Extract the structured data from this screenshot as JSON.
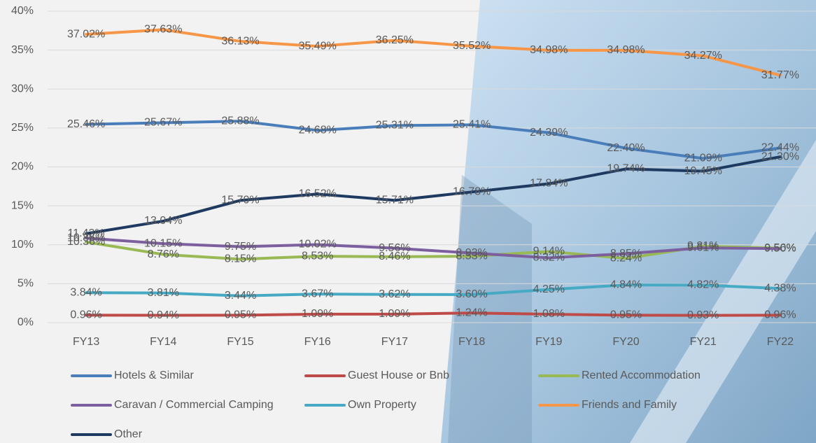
{
  "chart_data": {
    "type": "line",
    "categories": [
      "FY13",
      "FY14",
      "FY15",
      "FY16",
      "FY17",
      "FY18",
      "FY19",
      "FY20",
      "FY21",
      "FY22"
    ],
    "ylim": [
      0,
      40
    ],
    "yticks": [
      {
        "value": 0,
        "label": "0%"
      },
      {
        "value": 5,
        "label": "5%"
      },
      {
        "value": 10,
        "label": "10%"
      },
      {
        "value": 15,
        "label": "15%"
      },
      {
        "value": 20,
        "label": "20%"
      },
      {
        "value": 25,
        "label": "25%"
      },
      {
        "value": 30,
        "label": "30%"
      },
      {
        "value": 35,
        "label": "35%"
      },
      {
        "value": 40,
        "label": "40%"
      }
    ],
    "grid": true,
    "legend": "bottom",
    "series": [
      {
        "name": "Hotels & Similar",
        "color": "#4a7ebb",
        "values": [
          25.46,
          25.67,
          25.88,
          24.68,
          25.31,
          25.41,
          24.39,
          22.4,
          21.09,
          22.44
        ],
        "value_labels": [
          "25.46%",
          "25.67%",
          "25.88%",
          "24.68%",
          "25.31%",
          "25.41%",
          "24.39%",
          "22.40%",
          "21.09%",
          "22.44%"
        ]
      },
      {
        "name": "Guest House or Bnb",
        "color": "#be4b48",
        "values": [
          0.96,
          0.94,
          0.95,
          1.09,
          1.09,
          1.24,
          1.08,
          0.95,
          0.93,
          0.96
        ],
        "value_labels": [
          "0.96%",
          "0.94%",
          "0.95%",
          "1.09%",
          "1.09%",
          "1.24%",
          "1.08%",
          "0.95%",
          "0.93%",
          "0.96%"
        ]
      },
      {
        "name": "Rented Accommodation",
        "color": "#98b954",
        "values": [
          10.36,
          8.76,
          8.15,
          8.53,
          8.46,
          8.53,
          9.14,
          8.24,
          9.81,
          9.56
        ],
        "value_labels": [
          "10.36%",
          "8.76%",
          "8.15%",
          "8.53%",
          "8.46%",
          "8.53%",
          "9.14%",
          "8.24%",
          "9.81%",
          "9.56%"
        ]
      },
      {
        "name": "Caravan / Commercial Camping",
        "color": "#7d5fa0",
        "values": [
          10.86,
          10.15,
          9.75,
          10.02,
          9.56,
          8.93,
          8.32,
          8.85,
          9.61,
          9.5
        ],
        "value_labels": [
          "10.86%",
          "10.15%",
          "9.75%",
          "10.02%",
          "9.56%",
          "8.93%",
          "8.32%",
          "8.85%",
          "9.61%",
          "9.50%"
        ]
      },
      {
        "name": "Own Property",
        "color": "#46aac5",
        "values": [
          3.84,
          3.81,
          3.44,
          3.67,
          3.62,
          3.6,
          4.25,
          4.84,
          4.82,
          4.38
        ],
        "value_labels": [
          "3.84%",
          "3.81%",
          "3.44%",
          "3.67%",
          "3.62%",
          "3.60%",
          "4.25%",
          "4.84%",
          "4.82%",
          "4.38%"
        ]
      },
      {
        "name": "Friends and Family",
        "color": "#f79646",
        "values": [
          37.02,
          37.63,
          36.13,
          35.49,
          36.25,
          35.52,
          34.98,
          34.98,
          34.27,
          31.77
        ],
        "value_labels": [
          "37.02%",
          "37.63%",
          "36.13%",
          "35.49%",
          "36.25%",
          "35.52%",
          "34.98%",
          "34.98%",
          "34.27%",
          "31.77%"
        ]
      },
      {
        "name": "Other",
        "color": "#1f3a60",
        "values": [
          11.43,
          13.04,
          15.7,
          16.52,
          15.71,
          16.78,
          17.84,
          19.74,
          19.45,
          21.3
        ],
        "value_labels": [
          "11.43%",
          "13.04%",
          "15.70%",
          "16.52%",
          "15.71%",
          "16.78%",
          "17.84%",
          "19.74%",
          "19.45%",
          "21.30%"
        ]
      }
    ]
  }
}
